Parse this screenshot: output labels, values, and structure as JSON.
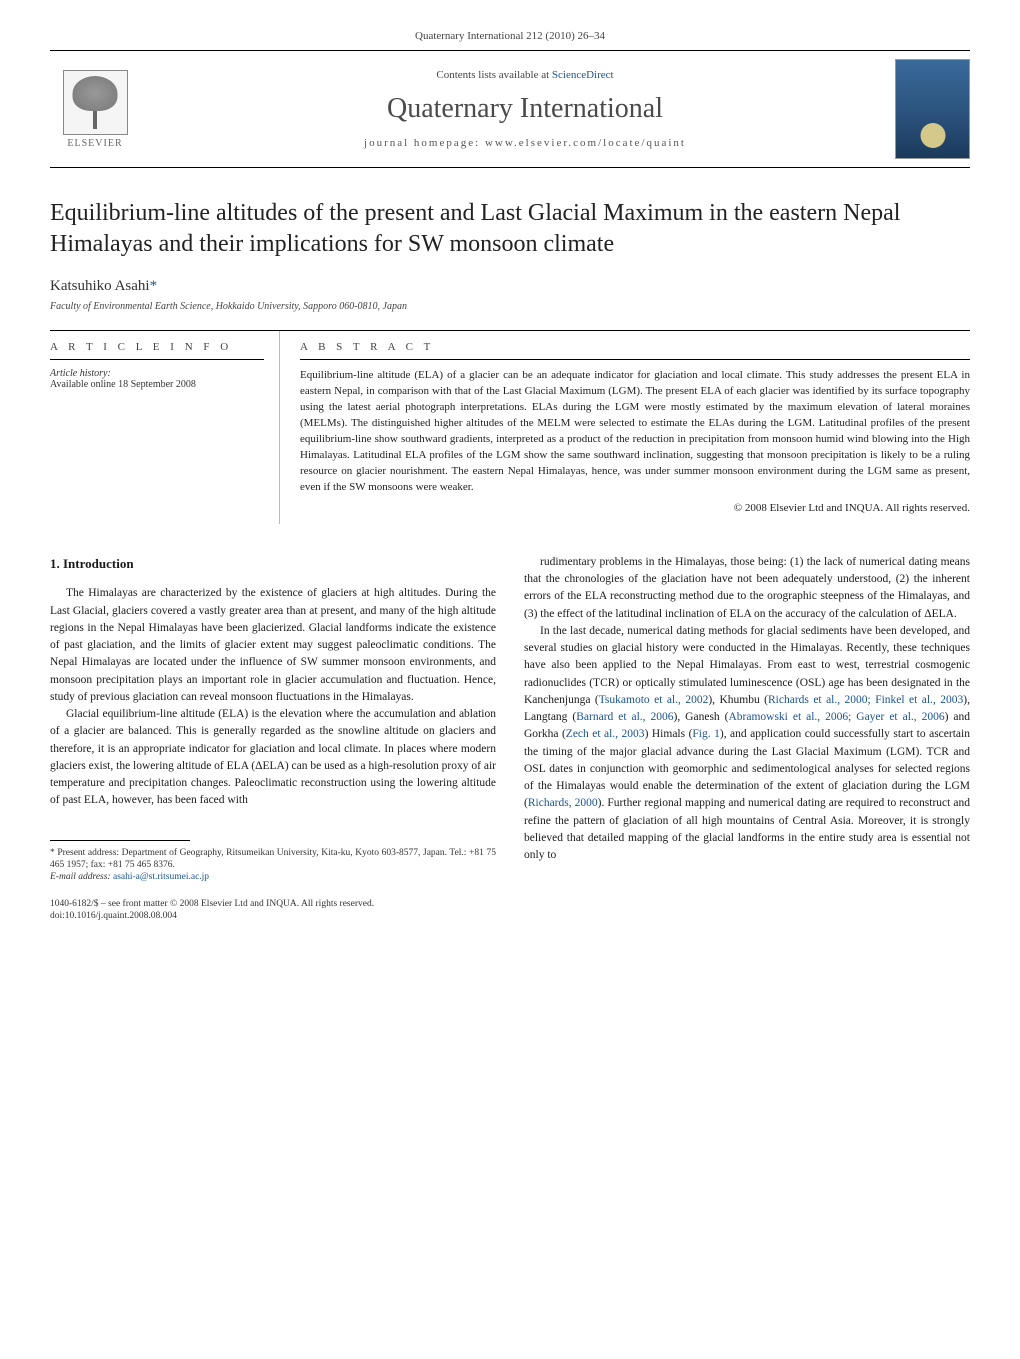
{
  "header": {
    "citation": "Quaternary International 212 (2010) 26–34"
  },
  "banner": {
    "elsevier": "ELSEVIER",
    "contents_prefix": "Contents lists available at ",
    "contents_link": "ScienceDirect",
    "journal_name": "Quaternary International",
    "homepage_prefix": "journal homepage: ",
    "homepage_url": "www.elsevier.com/locate/quaint"
  },
  "article": {
    "title": "Equilibrium-line altitudes of the present and Last Glacial Maximum in the eastern Nepal Himalayas and their implications for SW monsoon climate",
    "author": "Katsuhiko Asahi",
    "asterisk": "*",
    "affiliation": "Faculty of Environmental Earth Science, Hokkaido University, Sapporo 060-0810, Japan"
  },
  "info": {
    "heading": "A R T I C L E   I N F O",
    "history_label": "Article history:",
    "history_text": "Available online 18 September 2008"
  },
  "abstract": {
    "heading": "A B S T R A C T",
    "text": "Equilibrium-line altitude (ELA) of a glacier can be an adequate indicator for glaciation and local climate. This study addresses the present ELA in eastern Nepal, in comparison with that of the Last Glacial Maximum (LGM). The present ELA of each glacier was identified by its surface topography using the latest aerial photograph interpretations. ELAs during the LGM were mostly estimated by the maximum elevation of lateral moraines (MELMs). The distinguished higher altitudes of the MELM were selected to estimate the ELAs during the LGM. Latitudinal profiles of the present equilibrium-line show southward gradients, interpreted as a product of the reduction in precipitation from monsoon humid wind blowing into the High Himalayas. Latitudinal ELA profiles of the LGM show the same southward inclination, suggesting that monsoon precipitation is likely to be a ruling resource on glacier nourishment. The eastern Nepal Himalayas, hence, was under summer monsoon environment during the LGM same as present, even if the SW monsoons were weaker.",
    "copyright": "© 2008 Elsevier Ltd and INQUA. All rights reserved."
  },
  "body": {
    "intro_heading": "1. Introduction",
    "left": {
      "p1": "The Himalayas are characterized by the existence of glaciers at high altitudes. During the Last Glacial, glaciers covered a vastly greater area than at present, and many of the high altitude regions in the Nepal Himalayas have been glacierized. Glacial landforms indicate the existence of past glaciation, and the limits of glacier extent may suggest paleoclimatic conditions. The Nepal Himalayas are located under the influence of SW summer monsoon environments, and monsoon precipitation plays an important role in glacier accumulation and fluctuation. Hence, study of previous glaciation can reveal monsoon fluctuations in the Himalayas.",
      "p2": "Glacial equilibrium-line altitude (ELA) is the elevation where the accumulation and ablation of a glacier are balanced. This is generally regarded as the snowline altitude on glaciers and therefore, it is an appropriate indicator for glaciation and local climate. In places where modern glaciers exist, the lowering altitude of ELA (ΔELA) can be used as a high-resolution proxy of air temperature and precipitation changes. Paleoclimatic reconstruction using the lowering altitude of past ELA, however, has been faced with"
    },
    "right": {
      "p1": "rudimentary problems in the Himalayas, those being: (1) the lack of numerical dating means that the chronologies of the glaciation have not been adequately understood, (2) the inherent errors of the ELA reconstructing method due to the orographic steepness of the Himalayas, and (3) the effect of the latitudinal inclination of ELA on the accuracy of the calculation of ΔELA.",
      "p2_a": "In the last decade, numerical dating methods for glacial sediments have been developed, and several studies on glacial history were conducted in the Himalayas. Recently, these techniques have also been applied to the Nepal Himalayas. From east to west, terrestrial cosmogenic radionuclides (TCR) or optically stimulated luminescence (OSL) age has been designated in the Kanchenjunga (",
      "ref1": "Tsukamoto et al., 2002",
      "p2_b": "), Khumbu (",
      "ref2": "Richards et al., 2000; Finkel et al., 2003",
      "p2_c": "), Langtang (",
      "ref3": "Barnard et al., 2006",
      "p2_d": "), Ganesh (",
      "ref4": "Abramowski et al., 2006; Gayer et al., 2006",
      "p2_e": ") and Gorkha (",
      "ref5": "Zech et al., 2003",
      "p2_f": ") Himals (",
      "ref6": "Fig. 1",
      "p2_g": "), and application could successfully start to ascertain the timing of the major glacial advance during the Last Glacial Maximum (LGM). TCR and OSL dates in conjunction with geomorphic and sedimentological analyses for selected regions of the Himalayas would enable the determination of the extent of glaciation during the LGM (",
      "ref7": "Richards, 2000",
      "p2_h": "). Further regional mapping and numerical dating are required to reconstruct and refine the pattern of glaciation of all high mountains of Central Asia. Moreover, it is strongly believed that detailed mapping of the glacial landforms in the entire study area is essential not only to"
    }
  },
  "footnote": {
    "text": "* Present address: Department of Geography, Ritsumeikan University, Kita-ku, Kyoto 603-8577, Japan. Tel.: +81 75 465 1957; fax: +81 75 465 8376.",
    "email_label": "E-mail address: ",
    "email": "asahi-a@st.ritsumei.ac.jp"
  },
  "bottom": {
    "issn_line": "1040-6182/$ – see front matter © 2008 Elsevier Ltd and INQUA. All rights reserved.",
    "doi": "doi:10.1016/j.quaint.2008.08.004"
  },
  "colors": {
    "link": "#1a5490",
    "text": "#1a1a1a",
    "muted": "#444444"
  }
}
